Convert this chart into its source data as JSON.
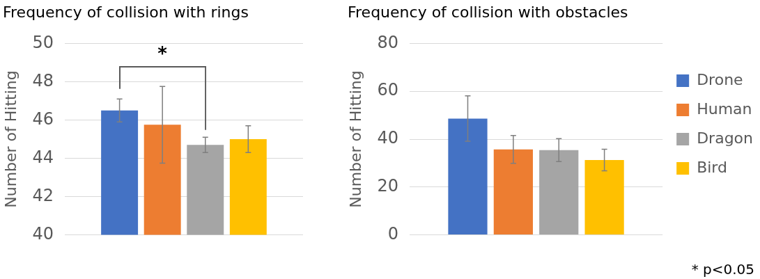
{
  "chart_data": [
    {
      "type": "bar",
      "title": "Frequency of collision with rings",
      "ylabel": "Number of Hitting",
      "categories": [
        null
      ],
      "ylim": [
        40,
        50
      ],
      "yticks": [
        40,
        42,
        44,
        46,
        48,
        50
      ],
      "grid": "y",
      "legend": false,
      "annotations": [
        "*"
      ],
      "series": [
        {
          "color": "#4472c4",
          "values": [
            46.5
          ],
          "errors": [
            0.6
          ]
        },
        {
          "color": "#ed7d31",
          "values": [
            45.75
          ],
          "errors": [
            2
          ]
        },
        {
          "color": "#a5a5a5",
          "values": [
            44.7
          ],
          "errors": [
            0.4
          ]
        },
        {
          "color": "#ffc000",
          "values": [
            45
          ],
          "errors": [
            0.7
          ]
        }
      ]
    },
    {
      "type": "bar",
      "title": "Frequency of collision with obstacles",
      "ylabel": "Number of Hitting",
      "categories": [
        null
      ],
      "ylim": [
        0,
        80
      ],
      "yticks": [
        0,
        20,
        40,
        60,
        80
      ],
      "grid": "y",
      "legend": "right",
      "annotations": [
        "* p<0.05"
      ],
      "series": [
        {
          "name": "Drone",
          "color": "#4472c4",
          "values": [
            48.6
          ],
          "errors": [
            9.5
          ]
        },
        {
          "name": "Human",
          "color": "#ed7d31",
          "values": [
            35.7
          ],
          "errors": [
            5.8
          ]
        },
        {
          "name": "Dragon",
          "color": "#a5a5a5",
          "values": [
            35.4
          ],
          "errors": [
            4.8
          ]
        },
        {
          "name": "Bird",
          "color": "#ffc000",
          "values": [
            31.3
          ],
          "errors": [
            4.5
          ]
        }
      ]
    }
  ]
}
